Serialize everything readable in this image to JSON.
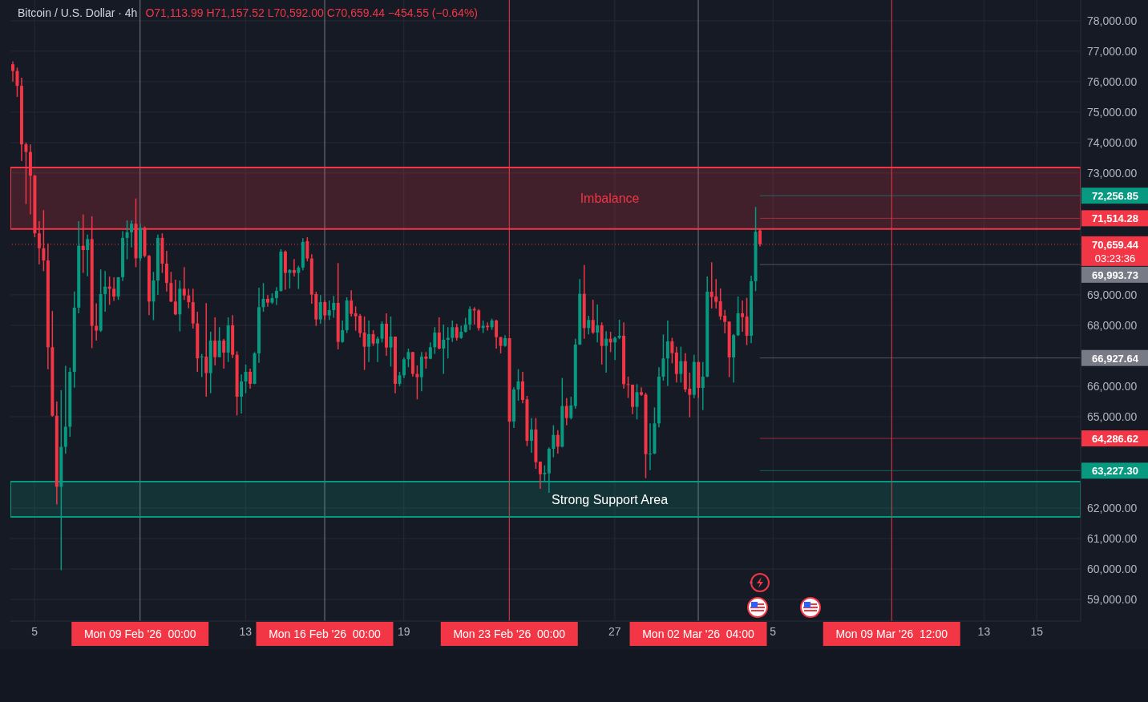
{
  "chart_data": {
    "type": "candlestick",
    "title": "Bitcoin / U.S. Dollar · 4h",
    "subtitle": "O71,113.99 H71,157.52 L70,592.00 C70,659.44 −454.55 (−0.64%)",
    "x": [
      "2026-02-04T04:00",
      "2026-02-04T08:00",
      "2026-02-04T12:00",
      "2026-02-04T16:00",
      "2026-02-04T20:00",
      "2026-02-05T00:00",
      "2026-02-05T04:00",
      "2026-02-05T08:00",
      "2026-02-05T12:00",
      "2026-02-05T16:00",
      "2026-02-05T20:00",
      "2026-02-06T00:00",
      "2026-02-06T04:00",
      "2026-02-06T08:00",
      "2026-02-06T12:00",
      "2026-02-06T16:00",
      "2026-02-06T20:00",
      "2026-02-07T00:00",
      "2026-02-07T04:00",
      "2026-02-07T08:00",
      "2026-02-07T12:00",
      "2026-02-07T16:00",
      "2026-02-07T20:00",
      "2026-02-08T00:00",
      "2026-02-08T04:00",
      "2026-02-08T08:00",
      "2026-02-08T12:00",
      "2026-02-08T16:00",
      "2026-02-08T20:00",
      "2026-02-09T00:00",
      "2026-02-09T04:00",
      "2026-02-09T08:00",
      "2026-02-09T12:00",
      "2026-02-09T16:00",
      "2026-02-09T20:00",
      "2026-02-10T00:00",
      "2026-02-10T04:00",
      "2026-02-10T08:00",
      "2026-02-10T12:00",
      "2026-02-10T16:00",
      "2026-02-10T20:00",
      "2026-02-11T00:00",
      "2026-02-11T04:00",
      "2026-02-11T08:00",
      "2026-02-11T12:00",
      "2026-02-11T16:00",
      "2026-02-11T20:00",
      "2026-02-12T00:00",
      "2026-02-12T04:00",
      "2026-02-12T08:00",
      "2026-02-12T12:00",
      "2026-02-12T16:00",
      "2026-02-12T20:00",
      "2026-02-13T00:00",
      "2026-02-13T04:00",
      "2026-02-13T08:00",
      "2026-02-13T12:00",
      "2026-02-13T16:00",
      "2026-02-13T20:00",
      "2026-02-14T00:00",
      "2026-02-14T04:00",
      "2026-02-14T08:00",
      "2026-02-14T12:00",
      "2026-02-14T16:00",
      "2026-02-14T20:00",
      "2026-02-15T00:00",
      "2026-02-15T04:00",
      "2026-02-15T08:00",
      "2026-02-15T12:00",
      "2026-02-15T16:00",
      "2026-02-15T20:00",
      "2026-02-16T00:00",
      "2026-02-16T04:00",
      "2026-02-16T08:00",
      "2026-02-16T12:00",
      "2026-02-16T16:00",
      "2026-02-16T20:00",
      "2026-02-17T00:00",
      "2026-02-17T04:00",
      "2026-02-17T08:00",
      "2026-02-17T12:00",
      "2026-02-17T16:00",
      "2026-02-17T20:00",
      "2026-02-18T00:00",
      "2026-02-18T04:00",
      "2026-02-18T08:00",
      "2026-02-18T12:00",
      "2026-02-18T16:00",
      "2026-02-18T20:00",
      "2026-02-19T00:00",
      "2026-02-19T04:00",
      "2026-02-19T08:00",
      "2026-02-19T12:00",
      "2026-02-19T16:00",
      "2026-02-19T20:00",
      "2026-02-20T00:00",
      "2026-02-20T04:00",
      "2026-02-20T08:00",
      "2026-02-20T12:00",
      "2026-02-20T16:00",
      "2026-02-20T20:00",
      "2026-02-21T00:00",
      "2026-02-21T04:00",
      "2026-02-21T08:00",
      "2026-02-21T12:00",
      "2026-02-21T16:00",
      "2026-02-21T20:00",
      "2026-02-22T00:00",
      "2026-02-22T04:00",
      "2026-02-22T08:00",
      "2026-02-22T12:00",
      "2026-02-22T16:00",
      "2026-02-22T20:00",
      "2026-02-23T00:00",
      "2026-02-23T04:00",
      "2026-02-23T08:00",
      "2026-02-23T12:00",
      "2026-02-23T16:00",
      "2026-02-23T20:00",
      "2026-02-24T00:00",
      "2026-02-24T04:00",
      "2026-02-24T08:00",
      "2026-02-24T12:00",
      "2026-02-24T16:00",
      "2026-02-24T20:00",
      "2026-02-25T00:00",
      "2026-02-25T04:00",
      "2026-02-25T08:00",
      "2026-02-25T12:00",
      "2026-02-25T16:00",
      "2026-02-25T20:00",
      "2026-02-26T00:00",
      "2026-02-26T04:00",
      "2026-02-26T08:00",
      "2026-02-26T12:00",
      "2026-02-26T16:00",
      "2026-02-26T20:00",
      "2026-02-27T00:00",
      "2026-02-27T04:00",
      "2026-02-27T08:00",
      "2026-02-27T12:00",
      "2026-02-27T16:00",
      "2026-02-27T20:00",
      "2026-02-28T00:00",
      "2026-02-28T04:00",
      "2026-02-28T08:00",
      "2026-02-28T12:00",
      "2026-02-28T16:00",
      "2026-02-28T20:00",
      "2026-03-01T00:00",
      "2026-03-01T04:00",
      "2026-03-01T08:00",
      "2026-03-01T12:00",
      "2026-03-01T16:00",
      "2026-03-01T20:00",
      "2026-03-02T00:00",
      "2026-03-02T04:00",
      "2026-03-02T08:00",
      "2026-03-02T12:00",
      "2026-03-02T16:00",
      "2026-03-02T20:00",
      "2026-03-03T00:00",
      "2026-03-03T04:00",
      "2026-03-03T08:00",
      "2026-03-03T12:00",
      "2026-03-03T16:00",
      "2026-03-03T20:00",
      "2026-03-04T00:00",
      "2026-03-04T04:00",
      "2026-03-04T08:00",
      "2026-03-04T12:00"
    ],
    "ohlc": [
      [
        76570,
        76660,
        76000,
        76350
      ],
      [
        76350,
        76460,
        75500,
        75860
      ],
      [
        75860,
        76130,
        73390,
        73940
      ],
      [
        73940,
        73997,
        71980,
        73690
      ],
      [
        73690,
        73940,
        71640,
        72910
      ],
      [
        72910,
        72940,
        70890,
        71020
      ],
      [
        71020,
        71420,
        70000,
        70530
      ],
      [
        70530,
        71780,
        69780,
        70130
      ],
      [
        70130,
        70690,
        66560,
        67280
      ],
      [
        67280,
        68470,
        65000,
        65030
      ],
      [
        65030,
        65500,
        62120,
        62700
      ],
      [
        62700,
        65870,
        59960,
        64010
      ],
      [
        64010,
        66670,
        63785,
        64670
      ],
      [
        64670,
        66610,
        64340,
        66470
      ],
      [
        66470,
        69110,
        65950,
        68580
      ],
      [
        68580,
        71420,
        68390,
        70610
      ],
      [
        70610,
        71640,
        69720,
        70470
      ],
      [
        70470,
        70980,
        69610,
        70830
      ],
      [
        70830,
        71580,
        67250,
        67980
      ],
      [
        67980,
        68725,
        67500,
        67825
      ],
      [
        67825,
        69835,
        67780,
        69025
      ],
      [
        69025,
        69780,
        68445,
        69270
      ],
      [
        69270,
        69600,
        68670,
        69200
      ],
      [
        69200,
        69580,
        68800,
        68945
      ],
      [
        68945,
        69580,
        68835,
        69580
      ],
      [
        69580,
        71090,
        69450,
        70870
      ],
      [
        70870,
        71445,
        70165,
        71055
      ],
      [
        71055,
        71445,
        70555,
        71335
      ],
      [
        71335,
        72165,
        69910,
        70200
      ],
      [
        70200,
        71335,
        70110,
        71200
      ],
      [
        71200,
        71245,
        70225,
        70280
      ],
      [
        70280,
        70310,
        68335,
        68780
      ],
      [
        68780,
        69755,
        68170,
        69470
      ],
      [
        69470,
        70980,
        68995,
        70870
      ],
      [
        70870,
        71020,
        69720,
        70025
      ],
      [
        70025,
        70445,
        69110,
        69390
      ],
      [
        69390,
        69755,
        68760,
        68780
      ],
      [
        68780,
        69500,
        68335,
        68360
      ],
      [
        68360,
        69470,
        67800,
        69200
      ],
      [
        69200,
        69910,
        68835,
        68980
      ],
      [
        68980,
        69200,
        68560,
        68760
      ],
      [
        68760,
        69200,
        67890,
        68060
      ],
      [
        68060,
        68445,
        66470,
        66915
      ],
      [
        66950,
        67060,
        66300,
        66980
      ],
      [
        66970,
        68727,
        65657,
        66430
      ],
      [
        66430,
        67790,
        65770,
        67500
      ],
      [
        67500,
        68262,
        66683,
        66955
      ],
      [
        66955,
        67938,
        66946,
        67500
      ],
      [
        67500,
        67560,
        66578,
        67105
      ],
      [
        67105,
        68262,
        66797,
        67999
      ],
      [
        67999,
        68332,
        66929,
        67034
      ],
      [
        67034,
        67148,
        65042,
        65657
      ],
      [
        65657,
        66385,
        65104,
        66157
      ],
      [
        66157,
        66710,
        65770,
        66473
      ],
      [
        66473,
        66578,
        65920,
        66078
      ],
      [
        66078,
        67122,
        66069,
        67078
      ],
      [
        67078,
        69236,
        66771,
        68596
      ],
      [
        68596,
        69385,
        68447,
        68868
      ],
      [
        68868,
        68990,
        68613,
        68745
      ],
      [
        68745,
        69052,
        68701,
        68894
      ],
      [
        68894,
        69254,
        68666,
        69131
      ],
      [
        69131,
        70499,
        69104,
        70420
      ],
      [
        70420,
        70455,
        69166,
        69719
      ],
      [
        69719,
        69841,
        69210,
        69815
      ],
      [
        69815,
        70175,
        69605,
        69719
      ],
      [
        69719,
        69955,
        69192,
        69894
      ],
      [
        69894,
        70859,
        69806,
        70736
      ],
      [
        70763,
        70894,
        70105,
        70193
      ],
      [
        70193,
        70333,
        68710,
        69008
      ],
      [
        69025,
        69104,
        67982,
        68192
      ],
      [
        68192,
        68990,
        68052,
        68763
      ],
      [
        68763,
        68815,
        68175,
        68324
      ],
      [
        68324,
        68815,
        68175,
        68499
      ],
      [
        68499,
        68964,
        68245,
        68736
      ],
      [
        68736,
        70043,
        67210,
        67455
      ],
      [
        67455,
        68157,
        67429,
        67841
      ],
      [
        67841,
        68920,
        67745,
        68815
      ],
      [
        68815,
        69148,
        68289,
        68376
      ],
      [
        68394,
        68622,
        67824,
        68297
      ],
      [
        68315,
        68376,
        67604,
        67745
      ],
      [
        67762,
        68289,
        66534,
        67297
      ],
      [
        67297,
        68157,
        66797,
        67710
      ],
      [
        67710,
        67841,
        67324,
        67402
      ],
      [
        67402,
        67631,
        66797,
        67560
      ],
      [
        67560,
        68131,
        67438,
        68052
      ],
      [
        68052,
        68394,
        67000,
        67271
      ],
      [
        67271,
        68289,
        66648,
        67631
      ],
      [
        67631,
        67631,
        65770,
        66078
      ],
      [
        66078,
        66473,
        66007,
        66358
      ],
      [
        66358,
        66946,
        66271,
        66885
      ],
      [
        66885,
        67236,
        66622,
        67122
      ],
      [
        67122,
        67122,
        66315,
        66403
      ],
      [
        66403,
        66683,
        65569,
        66297
      ],
      [
        66297,
        67122,
        65832,
        66973
      ],
      [
        66973,
        67122,
        66578,
        66903
      ],
      [
        66903,
        67438,
        66885,
        67280
      ],
      [
        67280,
        67938,
        67060,
        67762
      ],
      [
        67762,
        68262,
        67210,
        67236
      ],
      [
        67236,
        68026,
        66403,
        67525
      ],
      [
        67525,
        67938,
        66912,
        67587
      ],
      [
        67587,
        68157,
        67455,
        67938
      ],
      [
        67938,
        68052,
        67499,
        67587
      ],
      [
        67587,
        67982,
        67560,
        67788
      ],
      [
        67788,
        68245,
        67762,
        68026
      ],
      [
        68026,
        68622,
        67850,
        68534
      ],
      [
        68534,
        68596,
        68026,
        68490
      ],
      [
        68490,
        68534,
        67824,
        67911
      ],
      [
        67911,
        68157,
        67745,
        67982
      ],
      [
        67982,
        68096,
        67824,
        67938
      ],
      [
        67938,
        68218,
        67850,
        68157
      ],
      [
        68157,
        68183,
        67236,
        67613
      ],
      [
        67613,
        67613,
        67078,
        67324
      ],
      [
        67324,
        67674,
        67297,
        67578
      ],
      [
        67578,
        67578,
        64823,
        64841
      ],
      [
        64841,
        65964,
        64630,
        65894
      ],
      [
        65894,
        66560,
        65525,
        66157
      ],
      [
        66157,
        66473,
        65437,
        65551
      ],
      [
        65569,
        65683,
        64034,
        64209
      ],
      [
        64209,
        64955,
        63814,
        64578
      ],
      [
        64578,
        64955,
        63288,
        63507
      ],
      [
        63525,
        63525,
        62630,
        63112
      ],
      [
        63112,
        63402,
        62849,
        63156
      ],
      [
        63139,
        63990,
        62498,
        63946
      ],
      [
        63946,
        64718,
        63665,
        64402
      ],
      [
        64402,
        64560,
        63788,
        64016
      ],
      [
        64016,
        66271,
        63990,
        65350
      ],
      [
        65350,
        65613,
        64718,
        64955
      ],
      [
        64955,
        65657,
        64911,
        65367
      ],
      [
        65350,
        67560,
        65262,
        67368
      ],
      [
        67368,
        69517,
        67351,
        69034
      ],
      [
        69034,
        69982,
        67560,
        67911
      ],
      [
        67911,
        68315,
        67701,
        68175
      ],
      [
        68175,
        68841,
        67718,
        67762
      ],
      [
        67762,
        68683,
        67438,
        67999
      ],
      [
        67999,
        68096,
        66710,
        67324
      ],
      [
        67324,
        67806,
        66446,
        67560
      ],
      [
        67560,
        67788,
        67122,
        67438
      ],
      [
        67438,
        67631,
        66858,
        67587
      ],
      [
        67587,
        68183,
        67543,
        67657
      ],
      [
        67657,
        68096,
        65920,
        66069
      ],
      [
        66069,
        66315,
        65613,
        66060
      ],
      [
        66052,
        66052,
        65086,
        65323
      ],
      [
        65323,
        66069,
        64911,
        65806
      ],
      [
        65806,
        65964,
        65683,
        65718
      ],
      [
        65727,
        65788,
        62981,
        63770
      ],
      [
        63770,
        64780,
        63244,
        63788
      ],
      [
        63788,
        65306,
        63770,
        64780
      ],
      [
        64780,
        66622,
        64648,
        66315
      ],
      [
        66315,
        67701,
        66183,
        66912
      ],
      [
        66912,
        68157,
        66008,
        67473
      ],
      [
        67473,
        67587,
        66753,
        67087
      ],
      [
        67105,
        67297,
        66122,
        66403
      ],
      [
        66403,
        67297,
        66122,
        66823
      ],
      [
        66823,
        67087,
        65806,
        65894
      ],
      [
        65920,
        66446,
        64981,
        65718
      ],
      [
        65718,
        67034,
        65613,
        66797
      ],
      [
        66797,
        66797,
        65613,
        65946
      ],
      [
        65946,
        66797,
        65218,
        66315
      ],
      [
        66315,
        69605,
        66297,
        69104
      ],
      [
        69104,
        70069,
        68552,
        68929
      ],
      [
        68947,
        69517,
        68552,
        68771
      ],
      [
        68789,
        69210,
        68175,
        68289
      ],
      [
        68315,
        68508,
        67736,
        68113
      ],
      [
        68122,
        68122,
        66297,
        66946
      ],
      [
        66946,
        67718,
        66122,
        67675
      ],
      [
        67675,
        68947,
        67648,
        68394
      ],
      [
        68394,
        68815,
        67788,
        68271
      ],
      [
        68289,
        68903,
        67350,
        67657
      ],
      [
        67657,
        69631,
        67411,
        69447
      ],
      [
        69447,
        71886,
        69122,
        71070
      ],
      [
        71113.99,
        71157.52,
        70592.0,
        70659.44
      ]
    ],
    "xlim": [
      "2026-02-04T02:00",
      "2026-03-16T16:00"
    ],
    "xticks": [
      {
        "value": "2026-02-05",
        "label": "5"
      },
      {
        "value": "2026-02-13",
        "label": "13"
      },
      {
        "value": "2026-02-19",
        "label": "19"
      },
      {
        "value": "2026-02-27",
        "label": "27"
      },
      {
        "value": "2026-03-05",
        "label": "5"
      },
      {
        "value": "2026-03-13",
        "label": "13"
      },
      {
        "value": "2026-03-15",
        "label": "15"
      }
    ],
    "ylim": [
      58290,
      78680
    ],
    "yticks": [
      {
        "value": 59000,
        "label": "59,000.00"
      },
      {
        "value": 60000,
        "label": "60,000.00"
      },
      {
        "value": 61000,
        "label": "61,000.00"
      },
      {
        "value": 62000,
        "label": "62,000.00"
      },
      {
        "value": 65000,
        "label": "65,000.00"
      },
      {
        "value": 66000,
        "label": "66,000.00"
      },
      {
        "value": 68000,
        "label": "68,000.00"
      },
      {
        "value": 69000,
        "label": "69,000.00"
      },
      {
        "value": 73000,
        "label": "73,000.00"
      },
      {
        "value": 74000,
        "label": "74,000.00"
      },
      {
        "value": 75000,
        "label": "75,000.00"
      },
      {
        "value": 76000,
        "label": "76,000.00"
      },
      {
        "value": 77000,
        "label": "77,000.00"
      },
      {
        "value": 78000,
        "label": "78,000.00"
      }
    ],
    "grid": true,
    "bands": [
      {
        "axis": "y",
        "from": 71160,
        "to": 73180,
        "label": "Imbalance",
        "color": "#f23645"
      },
      {
        "axis": "y",
        "from": 61710,
        "to": 62870,
        "label": "Strong Support Area",
        "color": "#089981"
      }
    ],
    "ref_lines": [
      {
        "axis": "x",
        "value": "2026-02-09T00:00",
        "label": "Mon 09 Feb '26  00:00",
        "color": "#787b86"
      },
      {
        "axis": "x",
        "value": "2026-02-16T00:00",
        "label": "Mon 16 Feb '26  00:00",
        "color": "#787b86"
      },
      {
        "axis": "x",
        "value": "2026-02-23T00:00",
        "label": "Mon 23 Feb '26  00:00",
        "color": "#f23645"
      },
      {
        "axis": "x",
        "value": "2026-03-02T04:00",
        "label": "Mon 02 Mar '26  04:00",
        "color": "#787b86"
      },
      {
        "axis": "x",
        "value": "2026-03-09T12:00",
        "label": "Mon 09 Mar '26  12:00",
        "color": "#f23645"
      },
      {
        "axis": "y",
        "value": 72256.85,
        "label": "72,256.85",
        "color": "#089981"
      },
      {
        "axis": "y",
        "value": 71514.28,
        "label": "71,514.28",
        "color": "#f23645"
      },
      {
        "axis": "y",
        "value": 70659.44,
        "label": "70,659.44",
        "color": "#f23645",
        "line_style": "dotted"
      },
      {
        "axis": "y",
        "value": 69993.73,
        "label": "69,993.73",
        "color": "#787b86"
      },
      {
        "axis": "y",
        "value": 66927.64,
        "label": "66,927.64",
        "color": "#787b86"
      },
      {
        "axis": "y",
        "value": 64286.62,
        "label": "64,286.62",
        "color": "#f23645"
      },
      {
        "axis": "y",
        "value": 63227.3,
        "label": "63,227.30",
        "color": "#089981"
      }
    ],
    "annotations": [
      "03:23:36"
    ]
  }
}
